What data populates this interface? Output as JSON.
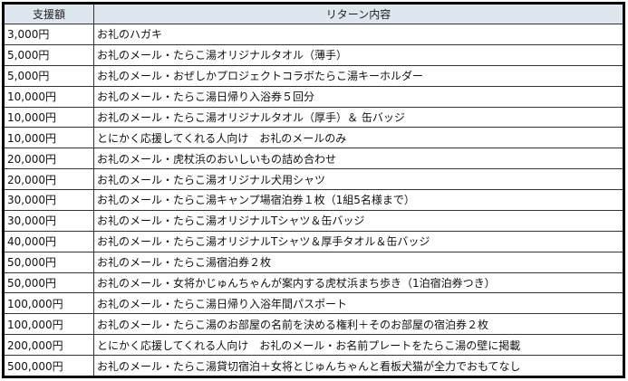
{
  "header": {
    "amount": "支援額",
    "reward": "リターン内容"
  },
  "rows": [
    {
      "amount": "3,000円",
      "reward": "お礼のハガキ"
    },
    {
      "amount": "5,000円",
      "reward": "お礼のメール・たらこ湯オリジナルタオル（薄手）"
    },
    {
      "amount": "5,000円",
      "reward": "お礼のメール・おぜしかプロジェクトコラボたらこ湯キーホルダー"
    },
    {
      "amount": "10,000円",
      "reward": "お礼のメール・たらこ湯日帰り入浴券５回分"
    },
    {
      "amount": "10,000円",
      "reward": "お礼のメール・たらこ湯オリジナルタオル（厚手）＆ 缶バッジ"
    },
    {
      "amount": "10,000円",
      "reward": "とにかく応援してくれる人向け　お礼のメールのみ"
    },
    {
      "amount": "20,000円",
      "reward": "お礼のメール・虎杖浜のおいしいもの詰め合わせ"
    },
    {
      "amount": "20,000円",
      "reward": "お礼のメール・たらこ湯オリジナル犬用シャツ"
    },
    {
      "amount": "30,000円",
      "reward": "お礼のメール・たらこ湯キャンプ場宿泊券１枚（1組5名様まで）"
    },
    {
      "amount": "30,000円",
      "reward": "お礼のメール・たらこ湯オリジナルTシャツ＆缶バッジ"
    },
    {
      "amount": "40,000円",
      "reward": "お礼のメール・たらこ湯オリジナルTシャツ＆厚手タオル＆缶バッジ"
    },
    {
      "amount": "50,000円",
      "reward": "お礼のメール・たらこ湯宿泊券２枚"
    },
    {
      "amount": "50,000円",
      "reward": "お礼のメール・女将かじゅんちゃんが案内する虎杖浜まち歩き（1泊宿泊券つき）"
    },
    {
      "amount": "100,000円",
      "reward": "お礼のメール・たらこ湯日帰り入浴年間パスポート"
    },
    {
      "amount": "100,000円",
      "reward": "お礼のメール・たらこ湯のお部屋の名前を決める権利＋そのお部屋の宿泊券２枚"
    },
    {
      "amount": "200,000円",
      "reward": "とにかく応援してくれる人向け　お礼のメール・お名前プレートをたらこ湯の壁に掲載"
    },
    {
      "amount": "500,000円",
      "reward": "お礼のメール・たらこ湯貸切宿泊＋女将とじゅんちゃんと看板犬猫が全力でおもてなし"
    }
  ]
}
